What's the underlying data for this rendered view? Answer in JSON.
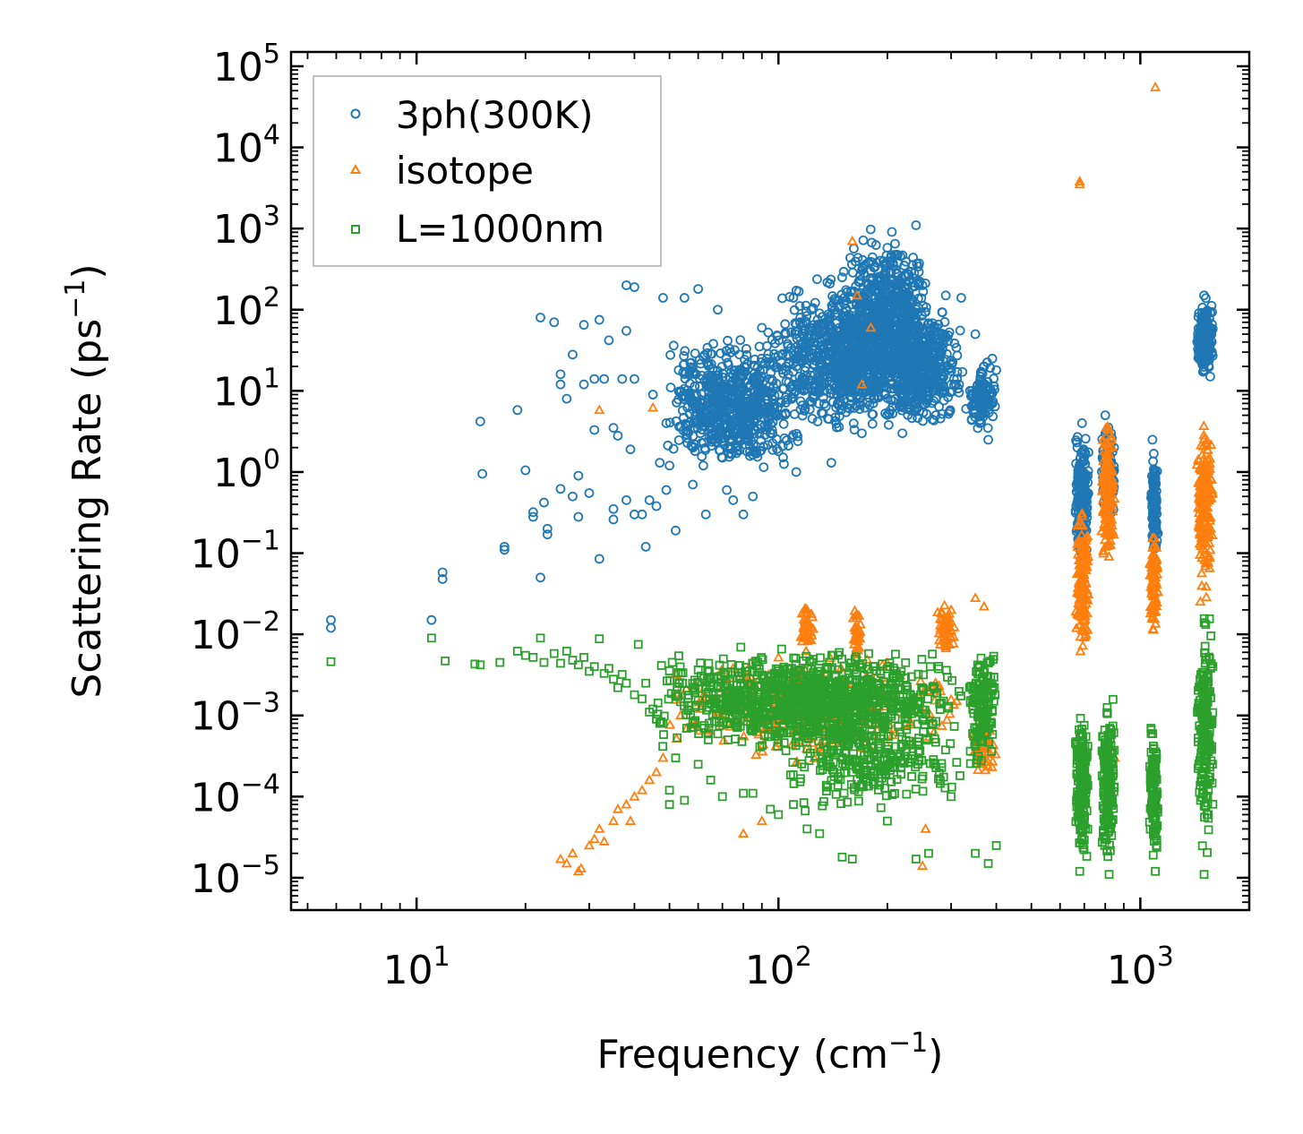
{
  "chart_data": {
    "type": "scatter",
    "title": "",
    "xlabel": "Frequency (cm",
    "xlabel_sup": "−1",
    "xlabel_end": ")",
    "ylabel": "Scattering Rate (ps",
    "ylabel_sup": "−1",
    "ylabel_end": ")",
    "x_scale": "log",
    "y_scale": "log",
    "xlim": [
      4.5,
      2000
    ],
    "ylim": [
      4e-06,
      150000
    ],
    "grid": false,
    "legend_position": "top-left",
    "x_ticks": [
      {
        "value": 10,
        "base": "10",
        "exp": "1"
      },
      {
        "value": 100,
        "base": "10",
        "exp": "2"
      },
      {
        "value": 1000,
        "base": "10",
        "exp": "3"
      }
    ],
    "y_ticks": [
      {
        "value": 100000.0,
        "base": "10",
        "exp": "5"
      },
      {
        "value": 10000.0,
        "base": "10",
        "exp": "4"
      },
      {
        "value": 1000.0,
        "base": "10",
        "exp": "3"
      },
      {
        "value": 100.0,
        "base": "10",
        "exp": "2"
      },
      {
        "value": 10.0,
        "base": "10",
        "exp": "1"
      },
      {
        "value": 1.0,
        "base": "10",
        "exp": "0"
      },
      {
        "value": 0.1,
        "base": "10",
        "exp": "−1"
      },
      {
        "value": 0.01,
        "base": "10",
        "exp": "−2"
      },
      {
        "value": 0.001,
        "base": "10",
        "exp": "−3"
      },
      {
        "value": 0.0001,
        "base": "10",
        "exp": "−4"
      },
      {
        "value": 1e-05,
        "base": "10",
        "exp": "−5"
      }
    ],
    "series": [
      {
        "name": "3ph(300K)",
        "marker": "circle",
        "color": "#1f77b4",
        "points": [
          [
            5.8,
            0.015
          ],
          [
            5.8,
            0.012
          ],
          [
            11,
            0.015
          ],
          [
            11.8,
            0.058
          ],
          [
            11.8,
            0.048
          ],
          [
            15,
            4.2
          ],
          [
            15.2,
            0.95
          ],
          [
            17.5,
            0.12
          ],
          [
            17.5,
            0.11
          ],
          [
            19,
            5.8
          ],
          [
            20,
            1.05
          ],
          [
            21,
            0.32
          ],
          [
            21,
            0.28
          ],
          [
            22,
            0.05
          ],
          [
            22,
            80
          ],
          [
            22.5,
            0.42
          ],
          [
            23,
            0.2
          ],
          [
            23,
            0.17
          ],
          [
            24,
            70
          ],
          [
            25,
            0.62
          ],
          [
            25,
            16
          ],
          [
            25,
            12
          ],
          [
            26,
            8
          ],
          [
            27,
            0.5
          ],
          [
            27,
            28
          ],
          [
            28,
            0.28
          ],
          [
            28,
            0.9
          ],
          [
            29,
            12
          ],
          [
            29,
            65
          ],
          [
            30,
            0.55
          ],
          [
            31,
            14
          ],
          [
            31,
            3.3
          ],
          [
            32,
            0.085
          ],
          [
            32,
            75
          ],
          [
            33,
            14
          ],
          [
            34,
            42
          ],
          [
            35,
            3.5
          ],
          [
            35,
            0.35
          ],
          [
            35,
            0.26
          ],
          [
            36,
            2.8
          ],
          [
            37,
            14
          ],
          [
            38,
            0.45
          ],
          [
            38,
            200
          ],
          [
            38,
            55
          ],
          [
            39,
            1.9
          ],
          [
            40,
            0.3
          ],
          [
            40,
            14
          ],
          [
            40,
            190
          ],
          [
            42,
            0.3
          ],
          [
            43,
            0.12
          ],
          [
            44,
            0.45
          ],
          [
            45,
            9
          ],
          [
            46,
            0.38
          ],
          [
            47,
            1.3
          ],
          [
            48,
            140
          ],
          [
            49,
            0.6
          ],
          [
            50,
            1.2
          ],
          [
            52,
            0.19
          ],
          [
            53,
            18
          ],
          [
            55,
            140
          ],
          [
            58,
            0.7
          ],
          [
            60,
            180
          ],
          [
            62,
            1.2
          ],
          [
            63,
            0.3
          ],
          [
            65,
            7
          ],
          [
            68,
            100
          ],
          [
            70,
            1.5
          ],
          [
            72,
            0.6
          ],
          [
            75,
            0.45
          ],
          [
            78,
            28
          ],
          [
            80,
            0.3
          ],
          [
            85,
            0.5
          ],
          [
            90,
            60
          ],
          [
            95,
            3
          ],
          [
            100,
            1.8
          ],
          [
            105,
            20
          ],
          [
            110,
            140
          ],
          [
            112,
            1
          ],
          [
            120,
            45
          ],
          [
            130,
            90
          ],
          [
            140,
            1.3
          ],
          [
            150,
            250
          ],
          [
            160,
            15
          ],
          [
            170,
            3
          ],
          [
            180,
            300
          ],
          [
            190,
            110
          ],
          [
            200,
            30
          ],
          [
            210,
            650
          ],
          [
            220,
            3
          ],
          [
            230,
            120
          ],
          [
            240,
            1100
          ],
          [
            250,
            200
          ],
          [
            260,
            8
          ],
          [
            270,
            60
          ],
          [
            280,
            35
          ],
          [
            290,
            150
          ],
          [
            300,
            12
          ],
          [
            320,
            140
          ],
          [
            330,
            6
          ],
          [
            350,
            50
          ],
          [
            360,
            4
          ],
          [
            370,
            20
          ],
          [
            380,
            2.5
          ],
          [
            390,
            25
          ],
          [
            400,
            18
          ],
          [
            670,
            2
          ],
          [
            680,
            0.5
          ],
          [
            690,
            4
          ],
          [
            700,
            0.8
          ],
          [
            800,
            5
          ],
          [
            820,
            1.2
          ],
          [
            830,
            3
          ],
          [
            840,
            0.6
          ],
          [
            1080,
            2.5
          ],
          [
            1090,
            0.4
          ],
          [
            1100,
            1
          ],
          [
            1450,
            30
          ],
          [
            1500,
            150
          ],
          [
            1550,
            80
          ],
          [
            1560,
            15
          ]
        ],
        "clusters": [
          {
            "x": [
              48,
              120
            ],
            "y": [
              0.7,
              60
            ],
            "n": 650
          },
          {
            "x": [
              90,
              270
            ],
            "y": [
              2,
              300
            ],
            "n": 900
          },
          {
            "x": [
              150,
              260
            ],
            "y": [
              8,
              1200
            ],
            "n": 500
          },
          {
            "x": [
              180,
              330
            ],
            "y": [
              2.5,
              150
            ],
            "n": 450
          },
          {
            "x": [
              335,
              400
            ],
            "y": [
              3,
              25
            ],
            "n": 120
          },
          {
            "x": [
              660,
              720
            ],
            "y": [
              0.06,
              4
            ],
            "n": 200
          },
          {
            "x": [
              780,
              850
            ],
            "y": [
              0.2,
              5.5
            ],
            "n": 160
          },
          {
            "x": [
              1070,
              1120
            ],
            "y": [
              0.07,
              2.5
            ],
            "n": 120
          },
          {
            "x": [
              1430,
              1590
            ],
            "y": [
              12,
              160
            ],
            "n": 220
          }
        ]
      },
      {
        "name": "isotope",
        "marker": "triangle",
        "color": "#ff7f0e",
        "points": [
          [
            25,
            1.7e-05
          ],
          [
            26,
            1.5e-05
          ],
          [
            27,
            2e-05
          ],
          [
            28,
            1.2e-05
          ],
          [
            28.5,
            1.3e-05
          ],
          [
            30,
            2.5e-05
          ],
          [
            31,
            3e-05
          ],
          [
            32,
            5.8
          ],
          [
            32,
            4e-05
          ],
          [
            33,
            2.8e-05
          ],
          [
            35,
            5e-05
          ],
          [
            36,
            7e-05
          ],
          [
            38,
            8e-05
          ],
          [
            39,
            5e-05
          ],
          [
            40,
            0.0001
          ],
          [
            42,
            0.00012
          ],
          [
            44,
            0.00016
          ],
          [
            45,
            6.2
          ],
          [
            46,
            0.0002
          ],
          [
            48,
            0.0003
          ],
          [
            80,
            3.5e-05
          ],
          [
            90,
            5e-05
          ],
          [
            120,
            0.02
          ],
          [
            128,
            0.0008
          ],
          [
            160,
            700
          ],
          [
            165,
            150
          ],
          [
            170,
            12
          ],
          [
            180,
            60
          ],
          [
            250,
            1.4e-05
          ],
          [
            255,
            4e-05
          ],
          [
            300,
            0.02
          ],
          [
            350,
            0.028
          ],
          [
            370,
            0.022
          ],
          [
            680,
            3800
          ],
          [
            680,
            3500
          ],
          [
            1100,
            55000
          ],
          [
            850,
            0.0003
          ]
        ],
        "clusters": [
          {
            "x": [
              48,
              330
            ],
            "y": [
              0.0002,
              0.008
            ],
            "n": 350
          },
          {
            "x": [
              115,
              125
            ],
            "y": [
              0.005,
              0.028
            ],
            "n": 40
          },
          {
            "x": [
              160,
              170
            ],
            "y": [
              0.005,
              0.025
            ],
            "n": 40
          },
          {
            "x": [
              270,
              310
            ],
            "y": [
              0.005,
              0.028
            ],
            "n": 50
          },
          {
            "x": [
              340,
              400
            ],
            "y": [
              0.00015,
              0.001
            ],
            "n": 50
          },
          {
            "x": [
              660,
              720
            ],
            "y": [
              0.004,
              0.5
            ],
            "n": 160
          },
          {
            "x": [
              780,
              850
            ],
            "y": [
              0.05,
              5
            ],
            "n": 160
          },
          {
            "x": [
              1060,
              1120
            ],
            "y": [
              0.008,
              0.3
            ],
            "n": 100
          },
          {
            "x": [
              1430,
              1590
            ],
            "y": [
              0.02,
              7
            ],
            "n": 180
          }
        ]
      },
      {
        "name": "L=1000nm",
        "marker": "square",
        "color": "#2ca02c",
        "points": [
          [
            5.8,
            0.0046
          ],
          [
            11,
            0.009
          ],
          [
            12,
            0.0047
          ],
          [
            14.5,
            0.0043
          ],
          [
            15,
            0.0042
          ],
          [
            17,
            0.0045
          ],
          [
            19,
            0.0062
          ],
          [
            20,
            0.0055
          ],
          [
            21,
            0.0052
          ],
          [
            22,
            0.009
          ],
          [
            22.5,
            0.0045
          ],
          [
            24,
            0.0058
          ],
          [
            25,
            0.0044
          ],
          [
            26,
            0.0062
          ],
          [
            27,
            0.0048
          ],
          [
            28,
            0.0042
          ],
          [
            29,
            0.0052
          ],
          [
            30,
            0.0035
          ],
          [
            31,
            0.004
          ],
          [
            32,
            0.0088
          ],
          [
            33,
            0.0033
          ],
          [
            34,
            0.0038
          ],
          [
            35,
            0.0028
          ],
          [
            36,
            0.0022
          ],
          [
            37,
            0.0032
          ],
          [
            38,
            0.0025
          ],
          [
            40,
            0.0018
          ],
          [
            41,
            0.0075
          ],
          [
            42,
            0.0016
          ],
          [
            43,
            0.0025
          ],
          [
            44,
            0.0011
          ],
          [
            45,
            0.0012
          ],
          [
            46,
            0.0009
          ],
          [
            47,
            0.0008
          ],
          [
            48,
            0.0008
          ],
          [
            50,
            0.00012
          ],
          [
            50,
            8e-05
          ],
          [
            52,
            0.0003
          ],
          [
            55,
            9e-05
          ],
          [
            60,
            0.00025
          ],
          [
            65,
            0.00016
          ],
          [
            70,
            0.0001
          ],
          [
            80,
            0.00011
          ],
          [
            85,
            0.00011
          ],
          [
            95,
            7e-05
          ],
          [
            100,
            6e-05
          ],
          [
            110,
            8e-05
          ],
          [
            120,
            4e-05
          ],
          [
            130,
            3.5e-05
          ],
          [
            150,
            1.8e-05
          ],
          [
            160,
            1.7e-05
          ],
          [
            200,
            5e-05
          ],
          [
            240,
            1.7e-05
          ],
          [
            260,
            2e-05
          ],
          [
            300,
            0.0001
          ],
          [
            350,
            2e-05
          ],
          [
            380,
            1.5e-05
          ],
          [
            400,
            2.5e-05
          ],
          [
            680,
            1.2e-05
          ],
          [
            820,
            1.1e-05
          ],
          [
            1100,
            1.2e-05
          ],
          [
            1500,
            1.1e-05
          ]
        ],
        "clusters": [
          {
            "x": [
              45,
              330
            ],
            "y": [
              0.0003,
              0.008
            ],
            "n": 1100
          },
          {
            "x": [
              100,
              320
            ],
            "y": [
              6e-05,
              0.0012
            ],
            "n": 250
          },
          {
            "x": [
              335,
              400
            ],
            "y": [
              0.0002,
              0.01
            ],
            "n": 150
          },
          {
            "x": [
              660,
              720
            ],
            "y": [
              1e-05,
              0.002
            ],
            "n": 180
          },
          {
            "x": [
              780,
              850
            ],
            "y": [
              1.1e-05,
              0.002
            ],
            "n": 160
          },
          {
            "x": [
              1060,
              1120
            ],
            "y": [
              1.2e-05,
              0.0015
            ],
            "n": 110
          },
          {
            "x": [
              1430,
              1590
            ],
            "y": [
              1.1e-05,
              0.025
            ],
            "n": 200
          }
        ]
      }
    ]
  }
}
